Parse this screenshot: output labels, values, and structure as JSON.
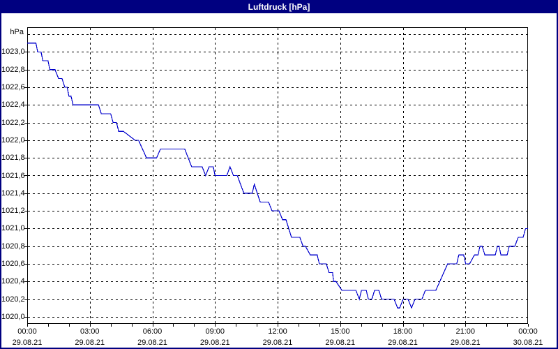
{
  "window": {
    "title": "Luftdruck [hPa]"
  },
  "colors": {
    "page_border": "#000080",
    "title_bar_bg": "#000080",
    "title_text": "#ffffff",
    "plot_background": "#ffffff",
    "grid": "#000000",
    "frame": "#000000",
    "label_text": "#000000",
    "line": "#0000cc"
  },
  "chart_data": {
    "type": "line",
    "title": "Luftdruck [hPa]",
    "y_unit": "hPa",
    "xlabel": "",
    "ylabel": "hPa",
    "grid": true,
    "legend": "none",
    "ylim": [
      1019.92,
      1023.28
    ],
    "xlim_hours": [
      0,
      24
    ],
    "x_minor_tick_every_hours": 1,
    "y_gridlines": [
      1020.0,
      1020.2,
      1020.4,
      1020.6,
      1020.8,
      1021.0,
      1021.2,
      1021.4,
      1021.6,
      1021.8,
      1022.0,
      1022.2,
      1022.4,
      1022.6,
      1022.8,
      1023.0,
      1023.2
    ],
    "x_gridline_hours": [
      3,
      6,
      9,
      12,
      15,
      18,
      21
    ],
    "y_tick_labels": [
      {
        "value": 1023.0,
        "label": "1023,0"
      },
      {
        "value": 1022.8,
        "label": "1022,8"
      },
      {
        "value": 1022.6,
        "label": "1022,6"
      },
      {
        "value": 1022.4,
        "label": "1022,4"
      },
      {
        "value": 1022.2,
        "label": "1022,2"
      },
      {
        "value": 1022.0,
        "label": "1022,0"
      },
      {
        "value": 1021.8,
        "label": "1021,8"
      },
      {
        "value": 1021.6,
        "label": "1021,6"
      },
      {
        "value": 1021.4,
        "label": "1021,4"
      },
      {
        "value": 1021.2,
        "label": "1021,2"
      },
      {
        "value": 1021.0,
        "label": "1021,0"
      },
      {
        "value": 1020.8,
        "label": "1020,8"
      },
      {
        "value": 1020.6,
        "label": "1020,6"
      },
      {
        "value": 1020.4,
        "label": "1020,4"
      },
      {
        "value": 1020.2,
        "label": "1020,2"
      },
      {
        "value": 1020.0,
        "label": "1020,0"
      }
    ],
    "x_tick_labels": [
      {
        "hour": 0,
        "time": "00:00",
        "date": "29.08.21"
      },
      {
        "hour": 3,
        "time": "03:00",
        "date": "29.08.21"
      },
      {
        "hour": 6,
        "time": "06:00",
        "date": "29.08.21"
      },
      {
        "hour": 9,
        "time": "09:00",
        "date": "29.08.21"
      },
      {
        "hour": 12,
        "time": "12:00",
        "date": "29.08.21"
      },
      {
        "hour": 15,
        "time": "15:00",
        "date": "29.08.21"
      },
      {
        "hour": 18,
        "time": "18:00",
        "date": "29.08.21"
      },
      {
        "hour": 21,
        "time": "21:00",
        "date": "29.08.21"
      },
      {
        "hour": 24,
        "time": "00:00",
        "date": "30.08.21"
      }
    ],
    "series": [
      {
        "name": "Luftdruck",
        "unit": "hPa",
        "x_is_minutes_since_midnight": true,
        "points": [
          [
            0,
            1023.1
          ],
          [
            25,
            1023.1
          ],
          [
            30,
            1023.0
          ],
          [
            40,
            1023.0
          ],
          [
            45,
            1022.9
          ],
          [
            60,
            1022.9
          ],
          [
            65,
            1022.8
          ],
          [
            80,
            1022.8
          ],
          [
            90,
            1022.7
          ],
          [
            100,
            1022.7
          ],
          [
            108,
            1022.6
          ],
          [
            115,
            1022.6
          ],
          [
            120,
            1022.5
          ],
          [
            126,
            1022.5
          ],
          [
            132,
            1022.4
          ],
          [
            205,
            1022.4
          ],
          [
            213,
            1022.3
          ],
          [
            240,
            1022.3
          ],
          [
            247,
            1022.2
          ],
          [
            257,
            1022.2
          ],
          [
            263,
            1022.1
          ],
          [
            277,
            1022.1
          ],
          [
            310,
            1022.0
          ],
          [
            320,
            1022.0
          ],
          [
            343,
            1021.8
          ],
          [
            372,
            1021.8
          ],
          [
            383,
            1021.9
          ],
          [
            453,
            1021.9
          ],
          [
            473,
            1021.7
          ],
          [
            503,
            1021.7
          ],
          [
            513,
            1021.6
          ],
          [
            523,
            1021.7
          ],
          [
            535,
            1021.7
          ],
          [
            540,
            1021.6
          ],
          [
            574,
            1021.6
          ],
          [
            583,
            1021.7
          ],
          [
            593,
            1021.6
          ],
          [
            604,
            1021.6
          ],
          [
            623,
            1021.4
          ],
          [
            647,
            1021.4
          ],
          [
            653,
            1021.5
          ],
          [
            670,
            1021.3
          ],
          [
            694,
            1021.3
          ],
          [
            704,
            1021.2
          ],
          [
            724,
            1021.2
          ],
          [
            734,
            1021.1
          ],
          [
            744,
            1021.1
          ],
          [
            760,
            1020.9
          ],
          [
            784,
            1020.9
          ],
          [
            793,
            1020.8
          ],
          [
            800,
            1020.8
          ],
          [
            814,
            1020.7
          ],
          [
            834,
            1020.7
          ],
          [
            840,
            1020.6
          ],
          [
            860,
            1020.6
          ],
          [
            868,
            1020.5
          ],
          [
            878,
            1020.5
          ],
          [
            881,
            1020.4
          ],
          [
            888,
            1020.4
          ],
          [
            905,
            1020.3
          ],
          [
            945,
            1020.3
          ],
          [
            955,
            1020.2
          ],
          [
            961,
            1020.3
          ],
          [
            975,
            1020.3
          ],
          [
            981,
            1020.2
          ],
          [
            991,
            1020.2
          ],
          [
            999,
            1020.3
          ],
          [
            1011,
            1020.3
          ],
          [
            1019,
            1020.2
          ],
          [
            1055,
            1020.2
          ],
          [
            1065,
            1020.1
          ],
          [
            1071,
            1020.1
          ],
          [
            1081,
            1020.2
          ],
          [
            1095,
            1020.2
          ],
          [
            1105,
            1020.1
          ],
          [
            1115,
            1020.2
          ],
          [
            1135,
            1020.2
          ],
          [
            1145,
            1020.3
          ],
          [
            1175,
            1020.3
          ],
          [
            1209,
            1020.6
          ],
          [
            1235,
            1020.6
          ],
          [
            1241,
            1020.7
          ],
          [
            1255,
            1020.7
          ],
          [
            1261,
            1020.6
          ],
          [
            1272,
            1020.6
          ],
          [
            1286,
            1020.7
          ],
          [
            1296,
            1020.7
          ],
          [
            1302,
            1020.8
          ],
          [
            1308,
            1020.8
          ],
          [
            1316,
            1020.7
          ],
          [
            1346,
            1020.7
          ],
          [
            1352,
            1020.8
          ],
          [
            1357,
            1020.8
          ],
          [
            1362,
            1020.7
          ],
          [
            1380,
            1020.7
          ],
          [
            1386,
            1020.8
          ],
          [
            1402,
            1020.8
          ],
          [
            1412,
            1020.9
          ],
          [
            1426,
            1020.9
          ],
          [
            1433,
            1021.0
          ],
          [
            1440,
            1021.0
          ]
        ]
      }
    ]
  }
}
